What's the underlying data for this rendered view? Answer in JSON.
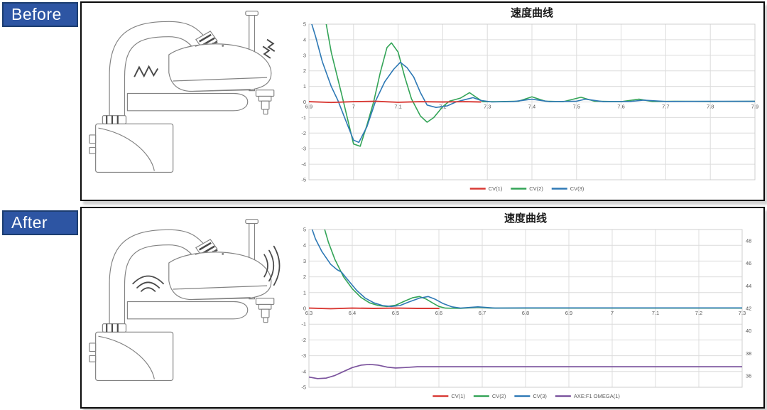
{
  "colors": {
    "badge_blue": "#2d55a3",
    "badge_border": "#1c3d6f",
    "grid": "#dcdcdc",
    "cv1_red": "#d93a35",
    "cv2_green": "#33a457",
    "cv3_blue": "#2e79b5",
    "omega_purple": "#7b539d"
  },
  "panels": [
    {
      "id": "before",
      "label": "Before"
    },
    {
      "id": "after",
      "label": "After"
    }
  ],
  "chart_data": [
    {
      "type": "line",
      "title": "速度曲线",
      "xlabel": "",
      "ylabel": "",
      "xlim": [
        6.9,
        7.9
      ],
      "ylim": [
        -5,
        5
      ],
      "grid": true,
      "legend_position": "bottom",
      "x_ticks": [
        6.9,
        7,
        7.1,
        7.2,
        7.3,
        7.4,
        7.5,
        7.6,
        7.7,
        7.8,
        7.9
      ],
      "y_ticks": [
        5,
        4,
        3,
        2,
        1,
        0,
        -1,
        -2,
        -3,
        -4,
        -5
      ],
      "series": [
        {
          "name": "CV(1)",
          "color": "#d93a35",
          "width": 1.9,
          "z": 10,
          "points": [
            [
              6.9,
              0.02
            ],
            [
              6.95,
              -0.03
            ],
            [
              7.0,
              0.02
            ],
            [
              7.05,
              0.04
            ],
            [
              7.1,
              -0.02
            ],
            [
              7.15,
              0.02
            ],
            [
              7.2,
              0.0
            ],
            [
              7.25,
              0.02
            ],
            [
              7.285,
              0.0
            ]
          ]
        },
        {
          "name": "CV(2)",
          "color": "#33a457",
          "width": 1.6,
          "z": 1,
          "points": [
            [
              6.935,
              5.6
            ],
            [
              6.95,
              3.2
            ],
            [
              6.975,
              0.3
            ],
            [
              6.985,
              -0.9
            ],
            [
              7.0,
              -2.7
            ],
            [
              7.015,
              -2.85
            ],
            [
              7.03,
              -1.5
            ],
            [
              7.045,
              0
            ],
            [
              7.06,
              1.9
            ],
            [
              7.075,
              3.5
            ],
            [
              7.085,
              3.8
            ],
            [
              7.1,
              3.2
            ],
            [
              7.115,
              1.6
            ],
            [
              7.13,
              0.2
            ],
            [
              7.15,
              -0.9
            ],
            [
              7.165,
              -1.3
            ],
            [
              7.18,
              -1.0
            ],
            [
              7.2,
              -0.3
            ],
            [
              7.215,
              0.05
            ],
            [
              7.24,
              0.25
            ],
            [
              7.26,
              0.6
            ],
            [
              7.275,
              0.3
            ],
            [
              7.29,
              0.02
            ],
            [
              7.32,
              0.02
            ],
            [
              7.37,
              0.05
            ],
            [
              7.4,
              0.33
            ],
            [
              7.43,
              0.05
            ],
            [
              7.47,
              0.02
            ],
            [
              7.51,
              0.3
            ],
            [
              7.54,
              0.05
            ],
            [
              7.6,
              0.02
            ],
            [
              7.64,
              0.18
            ],
            [
              7.67,
              0.03
            ],
            [
              7.72,
              0.04
            ],
            [
              7.8,
              0.03
            ],
            [
              7.9,
              0.04
            ]
          ]
        },
        {
          "name": "CV(3)",
          "color": "#2e79b5",
          "width": 1.6,
          "z": 2,
          "points": [
            [
              6.9,
              5.6
            ],
            [
              6.915,
              4.2
            ],
            [
              6.93,
              2.6
            ],
            [
              6.95,
              1.0
            ],
            [
              6.965,
              0.1
            ],
            [
              6.98,
              -1.0
            ],
            [
              7.0,
              -2.45
            ],
            [
              7.012,
              -2.6
            ],
            [
              7.03,
              -1.6
            ],
            [
              7.05,
              0.1
            ],
            [
              7.07,
              1.3
            ],
            [
              7.09,
              2.1
            ],
            [
              7.105,
              2.55
            ],
            [
              7.12,
              2.2
            ],
            [
              7.135,
              1.6
            ],
            [
              7.15,
              0.6
            ],
            [
              7.165,
              -0.2
            ],
            [
              7.185,
              -0.35
            ],
            [
              7.21,
              -0.25
            ],
            [
              7.23,
              0.0
            ],
            [
              7.25,
              0.15
            ],
            [
              7.268,
              0.28
            ],
            [
              7.285,
              0.1
            ],
            [
              7.31,
              0.0
            ],
            [
              7.36,
              0.03
            ],
            [
              7.4,
              0.18
            ],
            [
              7.44,
              0.02
            ],
            [
              7.5,
              0.05
            ],
            [
              7.52,
              0.18
            ],
            [
              7.56,
              0.02
            ],
            [
              7.62,
              0.03
            ],
            [
              7.65,
              0.12
            ],
            [
              7.7,
              0.03
            ],
            [
              7.8,
              0.04
            ],
            [
              7.9,
              0.04
            ]
          ]
        }
      ]
    },
    {
      "type": "line",
      "title": "速度曲线",
      "xlabel": "",
      "ylabel": "",
      "xlim": [
        6.3,
        7.3
      ],
      "ylim": [
        -5,
        5
      ],
      "grid": true,
      "legend_position": "bottom",
      "x_ticks": [
        6.3,
        6.4,
        6.5,
        6.6,
        6.7,
        6.8,
        6.9,
        7,
        7.1,
        7.2,
        7.3
      ],
      "y_ticks": [
        5,
        4,
        3,
        2,
        1,
        0,
        -1,
        -2,
        -3,
        -4,
        -5
      ],
      "right_axis": {
        "ticks": [
          48,
          46,
          44,
          42,
          40,
          38,
          36
        ],
        "align_value": 42,
        "left_per_right": 0.715
      },
      "series": [
        {
          "name": "CV(1)",
          "color": "#d93a35",
          "width": 1.9,
          "z": 10,
          "points": [
            [
              6.3,
              0.02
            ],
            [
              6.35,
              -0.02
            ],
            [
              6.4,
              0.02
            ],
            [
              6.45,
              0.0
            ],
            [
              6.5,
              0.02
            ],
            [
              6.55,
              0.0
            ],
            [
              6.6,
              0.0
            ]
          ]
        },
        {
          "name": "CV(2)",
          "color": "#33a457",
          "width": 1.6,
          "z": 2,
          "points": [
            [
              6.33,
              5.6
            ],
            [
              6.345,
              4.2
            ],
            [
              6.36,
              3.1
            ],
            [
              6.38,
              2.0
            ],
            [
              6.4,
              1.25
            ],
            [
              6.42,
              0.7
            ],
            [
              6.44,
              0.35
            ],
            [
              6.46,
              0.18
            ],
            [
              6.48,
              0.12
            ],
            [
              6.5,
              0.2
            ],
            [
              6.52,
              0.45
            ],
            [
              6.54,
              0.68
            ],
            [
              6.555,
              0.75
            ],
            [
              6.57,
              0.6
            ],
            [
              6.585,
              0.35
            ],
            [
              6.6,
              0.12
            ],
            [
              6.615,
              0.02
            ],
            [
              6.65,
              0.0
            ],
            [
              6.69,
              0.07
            ],
            [
              6.72,
              0.02
            ],
            [
              6.8,
              0.02
            ],
            [
              7.0,
              0.02
            ],
            [
              7.3,
              0.02
            ]
          ]
        },
        {
          "name": "CV(3)",
          "color": "#2e79b5",
          "width": 1.6,
          "z": 3,
          "points": [
            [
              6.3,
              5.6
            ],
            [
              6.315,
              4.4
            ],
            [
              6.33,
              3.6
            ],
            [
              6.35,
              2.8
            ],
            [
              6.365,
              2.45
            ],
            [
              6.375,
              2.3
            ],
            [
              6.39,
              1.8
            ],
            [
              6.41,
              1.15
            ],
            [
              6.43,
              0.65
            ],
            [
              6.45,
              0.35
            ],
            [
              6.47,
              0.18
            ],
            [
              6.49,
              0.12
            ],
            [
              6.51,
              0.18
            ],
            [
              6.53,
              0.4
            ],
            [
              6.555,
              0.65
            ],
            [
              6.575,
              0.75
            ],
            [
              6.59,
              0.6
            ],
            [
              6.61,
              0.3
            ],
            [
              6.63,
              0.1
            ],
            [
              6.65,
              0.02
            ],
            [
              6.69,
              0.1
            ],
            [
              6.73,
              0.02
            ],
            [
              6.8,
              0.03
            ],
            [
              7.0,
              0.03
            ],
            [
              7.3,
              0.03
            ]
          ]
        },
        {
          "name": "AXE:F1  OMEGA(1)",
          "color": "#7b539d",
          "width": 1.7,
          "z": 0,
          "points": [
            [
              6.3,
              -4.35
            ],
            [
              6.32,
              -4.45
            ],
            [
              6.34,
              -4.42
            ],
            [
              6.36,
              -4.25
            ],
            [
              6.38,
              -4.0
            ],
            [
              6.4,
              -3.75
            ],
            [
              6.42,
              -3.6
            ],
            [
              6.44,
              -3.55
            ],
            [
              6.46,
              -3.6
            ],
            [
              6.48,
              -3.72
            ],
            [
              6.5,
              -3.78
            ],
            [
              6.52,
              -3.75
            ],
            [
              6.55,
              -3.7
            ],
            [
              6.6,
              -3.7
            ],
            [
              6.8,
              -3.7
            ],
            [
              7.0,
              -3.7
            ],
            [
              7.3,
              -3.7
            ]
          ]
        }
      ]
    }
  ]
}
